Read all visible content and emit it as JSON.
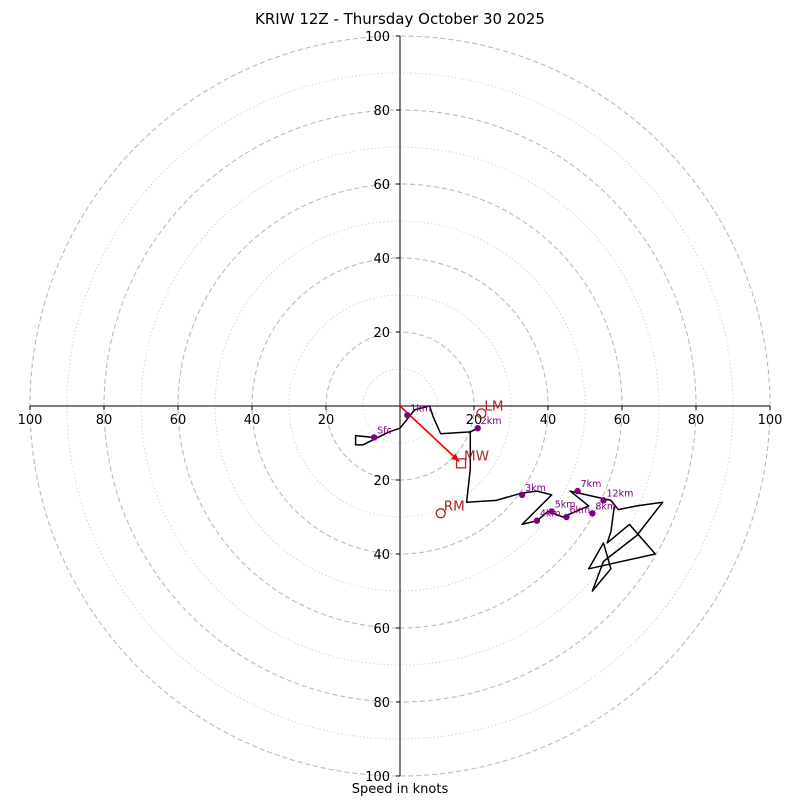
{
  "title": "KRIW 12Z - Thursday October 30 2025",
  "xlabel": "Speed in knots",
  "colors": {
    "ring_major": "#bbbbbb",
    "ring_minor": "#cccccc",
    "trace": "#000000",
    "height_marker": "#800080",
    "storm_motion": "#b22222",
    "mean_wind_vector": "#ff0000",
    "axis": "#000000"
  },
  "chart_data": {
    "type": "line",
    "title": "KRIW 12Z - Thursday October 30 2025",
    "xlabel": "Speed in knots",
    "ylabel": "",
    "range": 100,
    "rings_major": [
      20,
      40,
      60,
      80,
      100
    ],
    "rings_minor": [
      10,
      30,
      50,
      70,
      90
    ],
    "x_ticks": [
      "100",
      "80",
      "60",
      "40",
      "20",
      "20",
      "40",
      "60",
      "80",
      "100"
    ],
    "x_tick_values": [
      -100,
      -80,
      -60,
      -40,
      -20,
      20,
      40,
      60,
      80,
      100
    ],
    "y_ticks": [
      "100",
      "80",
      "60",
      "40",
      "20",
      "20",
      "40",
      "60",
      "80",
      "100"
    ],
    "y_tick_values": [
      100,
      80,
      60,
      40,
      20,
      -20,
      -40,
      -60,
      -80,
      -100
    ],
    "grid": true,
    "series": [
      {
        "u": [
          -7,
          -12,
          -12,
          -10,
          -3,
          0,
          4,
          8,
          9,
          11,
          19,
          21,
          19,
          19,
          18,
          26,
          33,
          37,
          41,
          33,
          37,
          40,
          44,
          51,
          46,
          57,
          59,
          64,
          71,
          64,
          55,
          52,
          57,
          55,
          51,
          69,
          62,
          56,
          57,
          58
        ],
        "v": [
          -8.5,
          -8,
          -10.5,
          -10.5,
          -7,
          -6,
          -1,
          0,
          -3,
          -7.5,
          -7,
          -6,
          -7,
          -17,
          -26,
          -25.5,
          -23.5,
          -23,
          -24,
          -32,
          -31,
          -28.5,
          -30,
          -27,
          -23,
          -25.5,
          -28,
          -27,
          -26,
          -35,
          -42,
          -50,
          -44,
          -37,
          -44,
          -40,
          -32,
          -37,
          -34,
          -26.5
        ]
      }
    ],
    "height_markers": [
      {
        "label": "Sfc",
        "u": -7,
        "v": -8.5
      },
      {
        "label": "1km",
        "u": 2,
        "v": -2.5
      },
      {
        "label": "2km",
        "u": 21,
        "v": -6
      },
      {
        "label": "3km",
        "u": 33,
        "v": -24
      },
      {
        "label": "4km",
        "u": 37,
        "v": -31
      },
      {
        "label": "5km",
        "u": 41,
        "v": -28.5
      },
      {
        "label": "6km",
        "u": 45,
        "v": -30
      },
      {
        "label": "7km",
        "u": 48,
        "v": -23
      },
      {
        "label": "8km",
        "u": 52,
        "v": -29
      },
      {
        "label": "12km",
        "u": 55,
        "v": -25.5
      }
    ],
    "storm_motions": [
      {
        "label": "LM",
        "u": 22,
        "v": -2,
        "marker": "circle"
      },
      {
        "label": "MW",
        "u": 16.5,
        "v": -15.5,
        "marker": "square"
      },
      {
        "label": "RM",
        "u": 11,
        "v": -29,
        "marker": "circle"
      }
    ],
    "mean_wind_vector": {
      "u": 16,
      "v": -15
    }
  }
}
